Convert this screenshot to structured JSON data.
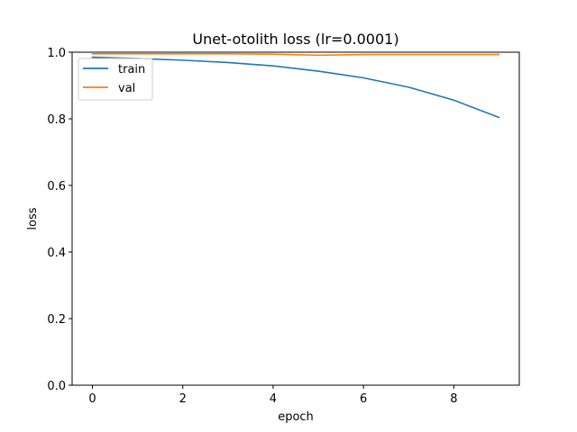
{
  "chart_data": {
    "type": "line",
    "title": "Unet-otolith loss (lr=0.0001)",
    "xlabel": "epoch",
    "ylabel": "loss",
    "xlim": [
      -0.45,
      9.45
    ],
    "ylim": [
      0.0,
      1.0
    ],
    "xticks": [
      0,
      2,
      4,
      6,
      8
    ],
    "yticks": [
      0.0,
      0.2,
      0.4,
      0.6,
      0.8,
      1.0
    ],
    "xtick_labels": [
      "0",
      "2",
      "4",
      "6",
      "8"
    ],
    "ytick_labels": [
      "0.0",
      "0.2",
      "0.4",
      "0.6",
      "0.8",
      "1.0"
    ],
    "grid": false,
    "legend_position": "upper-left",
    "x": [
      0,
      1,
      2,
      3,
      4,
      5,
      6,
      7,
      8,
      9
    ],
    "series": [
      {
        "name": "train",
        "color": "#1f77b4",
        "values": [
          0.985,
          0.981,
          0.976,
          0.969,
          0.959,
          0.943,
          0.923,
          0.895,
          0.856,
          0.804
        ]
      },
      {
        "name": "val",
        "color": "#ff7f0e",
        "values": [
          0.995,
          0.995,
          0.995,
          0.995,
          0.994,
          0.991,
          0.993,
          0.993,
          0.993,
          0.993
        ]
      }
    ]
  }
}
